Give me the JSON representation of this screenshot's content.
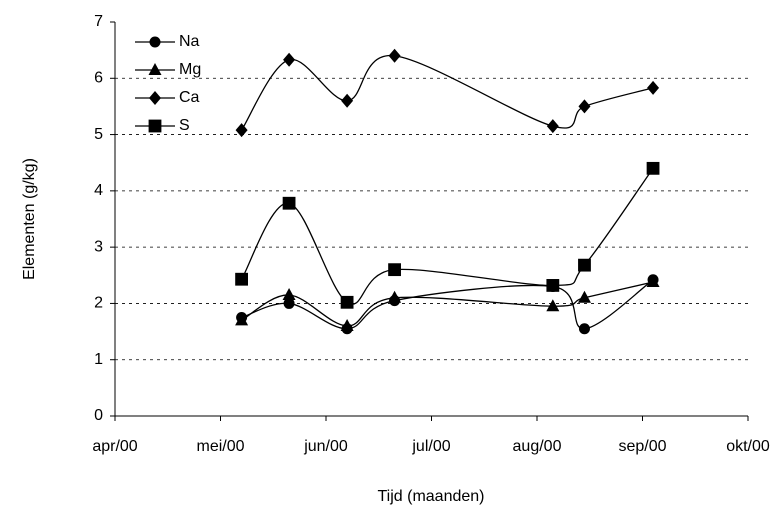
{
  "chart_data": {
    "type": "line",
    "x_label": "Tijd (maanden)",
    "y_label": "Elementen (g/kg)",
    "x": [
      1.2,
      1.65,
      2.2,
      2.65,
      4.15,
      4.45,
      5.1
    ],
    "xlim": [
      0,
      6
    ],
    "xticks": [
      {
        "value": 0,
        "label": "apr/00"
      },
      {
        "value": 1,
        "label": "mei/00"
      },
      {
        "value": 2,
        "label": "jun/00"
      },
      {
        "value": 3,
        "label": "jul/00"
      },
      {
        "value": 4,
        "label": "aug/00"
      },
      {
        "value": 5,
        "label": "sep/00"
      },
      {
        "value": 6,
        "label": "okt/00"
      }
    ],
    "ylim": [
      0,
      7
    ],
    "yticks": [
      0,
      1,
      2,
      3,
      4,
      5,
      6,
      7
    ],
    "grid": true,
    "smooth": true,
    "legend": "upper-left",
    "series": [
      {
        "name": "Na",
        "color": "#000000",
        "marker": "circle",
        "values": [
          1.75,
          2.0,
          1.55,
          2.05,
          2.3,
          1.55,
          2.42
        ]
      },
      {
        "name": "Mg",
        "color": "#000000",
        "marker": "triangle",
        "values": [
          1.7,
          2.15,
          1.6,
          2.1,
          1.95,
          2.1,
          2.38
        ]
      },
      {
        "name": "Ca",
        "color": "#000000",
        "marker": "diamond",
        "values": [
          5.08,
          6.33,
          5.6,
          6.4,
          5.15,
          5.5,
          5.83
        ]
      },
      {
        "name": "S",
        "color": "#000000",
        "marker": "square",
        "values": [
          2.43,
          3.78,
          2.02,
          2.6,
          2.32,
          2.68,
          4.4
        ]
      }
    ]
  }
}
